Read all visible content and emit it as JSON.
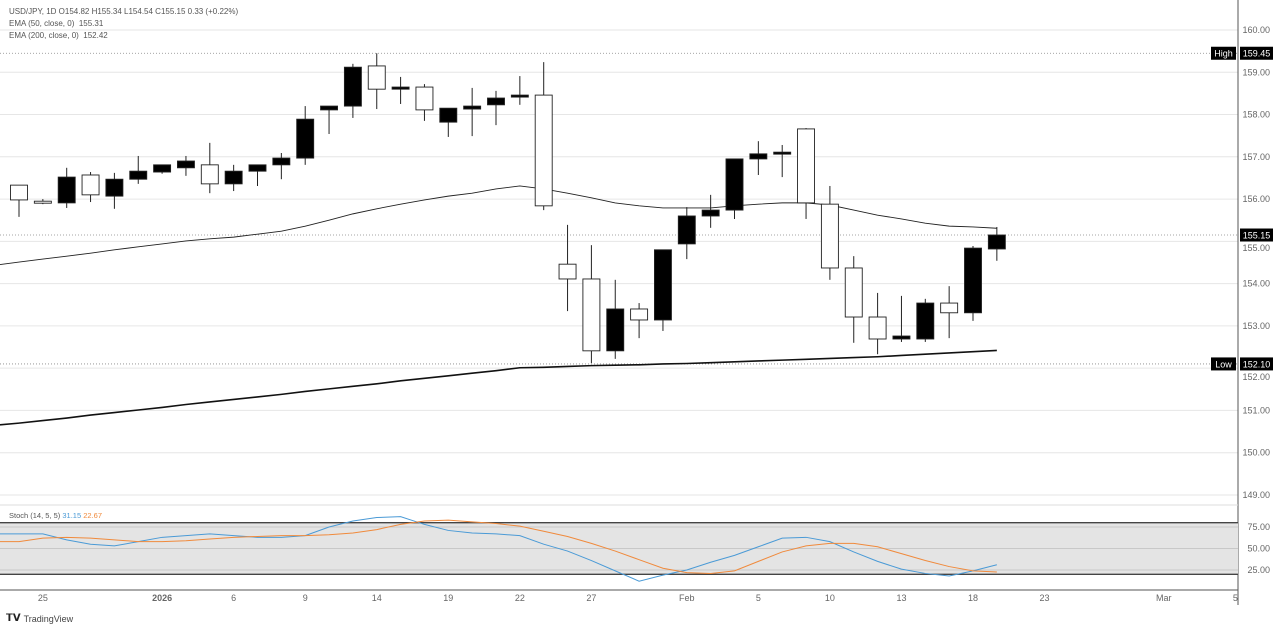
{
  "legend": {
    "symbol_line": "USD/JPY, 1D  O154.82  H155.34  L154.54  C155.15  0.33 (+0.22%)",
    "ema50_label": "EMA (50, close, 0)",
    "ema50_value": "155.31",
    "ema200_label": "EMA (200, close, 0)",
    "ema200_value": "152.42",
    "stoch_label": "Stoch (14, 5, 5)",
    "stoch_k_value": "31.15",
    "stoch_d_value": "22.67"
  },
  "footer": {
    "brand": "TradingView",
    "logo_text": "TV"
  },
  "colors": {
    "up_body": "#000000",
    "down_body": "#ffffff",
    "stoch_k": "#4a9ad6",
    "stoch_d": "#f08a3c",
    "stoch_band": "#e4e4e4"
  },
  "chart_data": [
    {
      "type": "candlestick",
      "title": "USD/JPY, 1D",
      "ylim": [
        148.7,
        160.4
      ],
      "yticks": [
        "160.00",
        "159.00",
        "158.00",
        "157.00",
        "156.00",
        "155.00",
        "154.00",
        "153.00",
        "152.00",
        "151.00",
        "150.00",
        "149.00"
      ],
      "xticks": [
        "25",
        "2026",
        "6",
        "9",
        "14",
        "19",
        "22",
        "27",
        "Feb",
        "5",
        "10",
        "13",
        "18",
        "23",
        "Mar",
        "5"
      ],
      "grid": true,
      "markers": {
        "high": {
          "label": "High",
          "value": "159.45"
        },
        "low": {
          "label": "Low",
          "value": "152.10"
        },
        "last": {
          "value": "155.15"
        }
      },
      "ohlc": [
        [
          156.33,
          156.33,
          155.58,
          155.98
        ],
        [
          155.95,
          156.0,
          155.88,
          155.93
        ],
        [
          155.91,
          156.74,
          155.79,
          156.52
        ],
        [
          156.57,
          156.64,
          155.93,
          156.1
        ],
        [
          156.07,
          156.62,
          155.77,
          156.47
        ],
        [
          156.47,
          157.02,
          156.36,
          156.66
        ],
        [
          156.64,
          156.81,
          156.6,
          156.81
        ],
        [
          156.74,
          157.02,
          156.55,
          156.9
        ],
        [
          156.81,
          157.33,
          156.14,
          156.36
        ],
        [
          156.36,
          156.81,
          156.19,
          156.66
        ],
        [
          156.66,
          156.81,
          156.31,
          156.81
        ],
        [
          156.81,
          157.09,
          156.47,
          156.97
        ],
        [
          156.97,
          158.2,
          156.81,
          157.89
        ],
        [
          158.11,
          158.2,
          157.54,
          158.2
        ],
        [
          158.2,
          159.2,
          157.92,
          159.12
        ],
        [
          159.15,
          159.45,
          158.13,
          158.6
        ],
        [
          158.6,
          158.89,
          158.25,
          158.65
        ],
        [
          158.65,
          158.72,
          157.85,
          158.11
        ],
        [
          157.82,
          158.15,
          157.47,
          158.15
        ],
        [
          158.13,
          158.63,
          157.49,
          158.2
        ],
        [
          158.23,
          158.56,
          157.75,
          158.39
        ],
        [
          158.42,
          158.91,
          158.23,
          158.46
        ],
        [
          158.46,
          159.24,
          155.74,
          155.84
        ],
        [
          154.46,
          155.39,
          153.35,
          154.11
        ],
        [
          154.11,
          154.91,
          152.12,
          152.41
        ],
        [
          152.41,
          154.09,
          152.22,
          153.4
        ],
        [
          153.4,
          153.54,
          152.71,
          153.14
        ],
        [
          153.14,
          154.8,
          152.88,
          154.8
        ],
        [
          154.94,
          155.81,
          154.58,
          155.6
        ],
        [
          155.6,
          156.1,
          155.32,
          155.74
        ],
        [
          155.74,
          156.95,
          155.53,
          156.95
        ],
        [
          156.95,
          157.37,
          156.57,
          157.07
        ],
        [
          157.07,
          157.28,
          156.52,
          157.11
        ],
        [
          157.66,
          157.68,
          155.53,
          155.91
        ],
        [
          155.88,
          156.31,
          154.09,
          154.37
        ],
        [
          154.37,
          154.65,
          152.6,
          153.21
        ],
        [
          153.21,
          153.78,
          152.33,
          152.69
        ],
        [
          152.69,
          153.71,
          152.62,
          152.76
        ],
        [
          152.69,
          153.64,
          152.62,
          153.54
        ],
        [
          153.54,
          153.94,
          152.71,
          153.31
        ],
        [
          153.31,
          154.89,
          153.12,
          154.84
        ],
        [
          154.82,
          155.34,
          154.54,
          155.15
        ]
      ],
      "ema50": [
        154.51,
        154.58,
        154.65,
        154.72,
        154.8,
        154.87,
        154.94,
        155.01,
        155.06,
        155.1,
        155.17,
        155.24,
        155.36,
        155.5,
        155.65,
        155.77,
        155.88,
        155.98,
        156.07,
        156.14,
        156.24,
        156.31,
        156.24,
        156.14,
        156.03,
        155.91,
        155.84,
        155.79,
        155.79,
        155.79,
        155.84,
        155.88,
        155.91,
        155.91,
        155.86,
        155.74,
        155.62,
        155.53,
        155.43,
        155.36,
        155.34,
        155.31
      ],
      "ema200": [
        150.7,
        150.76,
        150.82,
        150.89,
        150.95,
        151.01,
        151.07,
        151.14,
        151.2,
        151.26,
        151.32,
        151.38,
        151.45,
        151.51,
        151.57,
        151.63,
        151.7,
        151.76,
        151.82,
        151.88,
        151.94,
        152.01,
        152.02,
        152.04,
        152.06,
        152.07,
        152.08,
        152.1,
        152.11,
        152.13,
        152.15,
        152.17,
        152.19,
        152.21,
        152.23,
        152.25,
        152.27,
        152.3,
        152.33,
        152.36,
        152.39,
        152.42
      ]
    },
    {
      "type": "line",
      "title": "Stoch (14, 5, 5)",
      "ylim": [
        0,
        100
      ],
      "yticks": [
        "75.00",
        "50.00",
        "25.00"
      ],
      "bands": [
        20,
        80
      ],
      "series": [
        {
          "name": "%K",
          "values": [
            67,
            67,
            60,
            55,
            53,
            58,
            63,
            65,
            67,
            65,
            63,
            63,
            65,
            75,
            82,
            86,
            87,
            78,
            71,
            68,
            67,
            65,
            55,
            47,
            36,
            24,
            12,
            19,
            25,
            34,
            42,
            52,
            62,
            63,
            58,
            46,
            35,
            26,
            21,
            18,
            24,
            31.15
          ]
        },
        {
          "name": "%D",
          "values": [
            58,
            62,
            63,
            62,
            60,
            58,
            58,
            59,
            61,
            63,
            64,
            65,
            65,
            66,
            68,
            72,
            78,
            82,
            83,
            81,
            79,
            76,
            70,
            64,
            56,
            47,
            37,
            27,
            22,
            21,
            24,
            35,
            46,
            53,
            56,
            56,
            52,
            44,
            36,
            29,
            24,
            22.67
          ]
        }
      ]
    }
  ]
}
